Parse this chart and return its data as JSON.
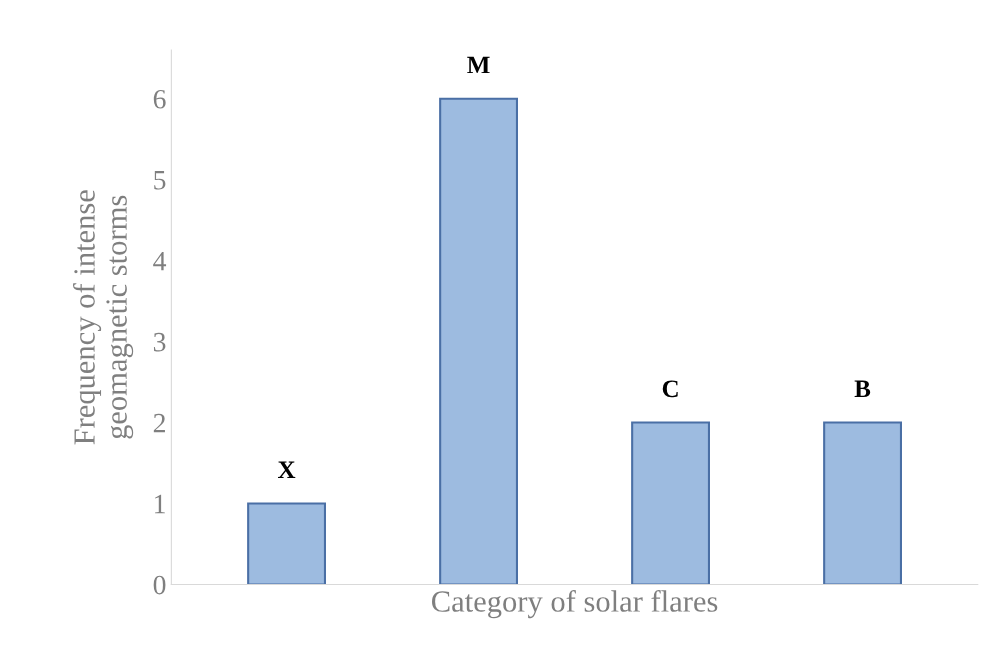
{
  "chart_data": {
    "type": "bar",
    "xlabel": "Category of solar flares",
    "ylabel": "Frequency of intense\ngeomagnetic storms",
    "categories": [
      "X",
      "M",
      "C",
      "B"
    ],
    "values": [
      1,
      6,
      2,
      2
    ],
    "color": "#9dbbe0",
    "ylim": [
      0,
      6.6
    ],
    "yticks": [
      0,
      1,
      2,
      3,
      4,
      5,
      6
    ],
    "grid": false,
    "tick_labels": "y"
  }
}
